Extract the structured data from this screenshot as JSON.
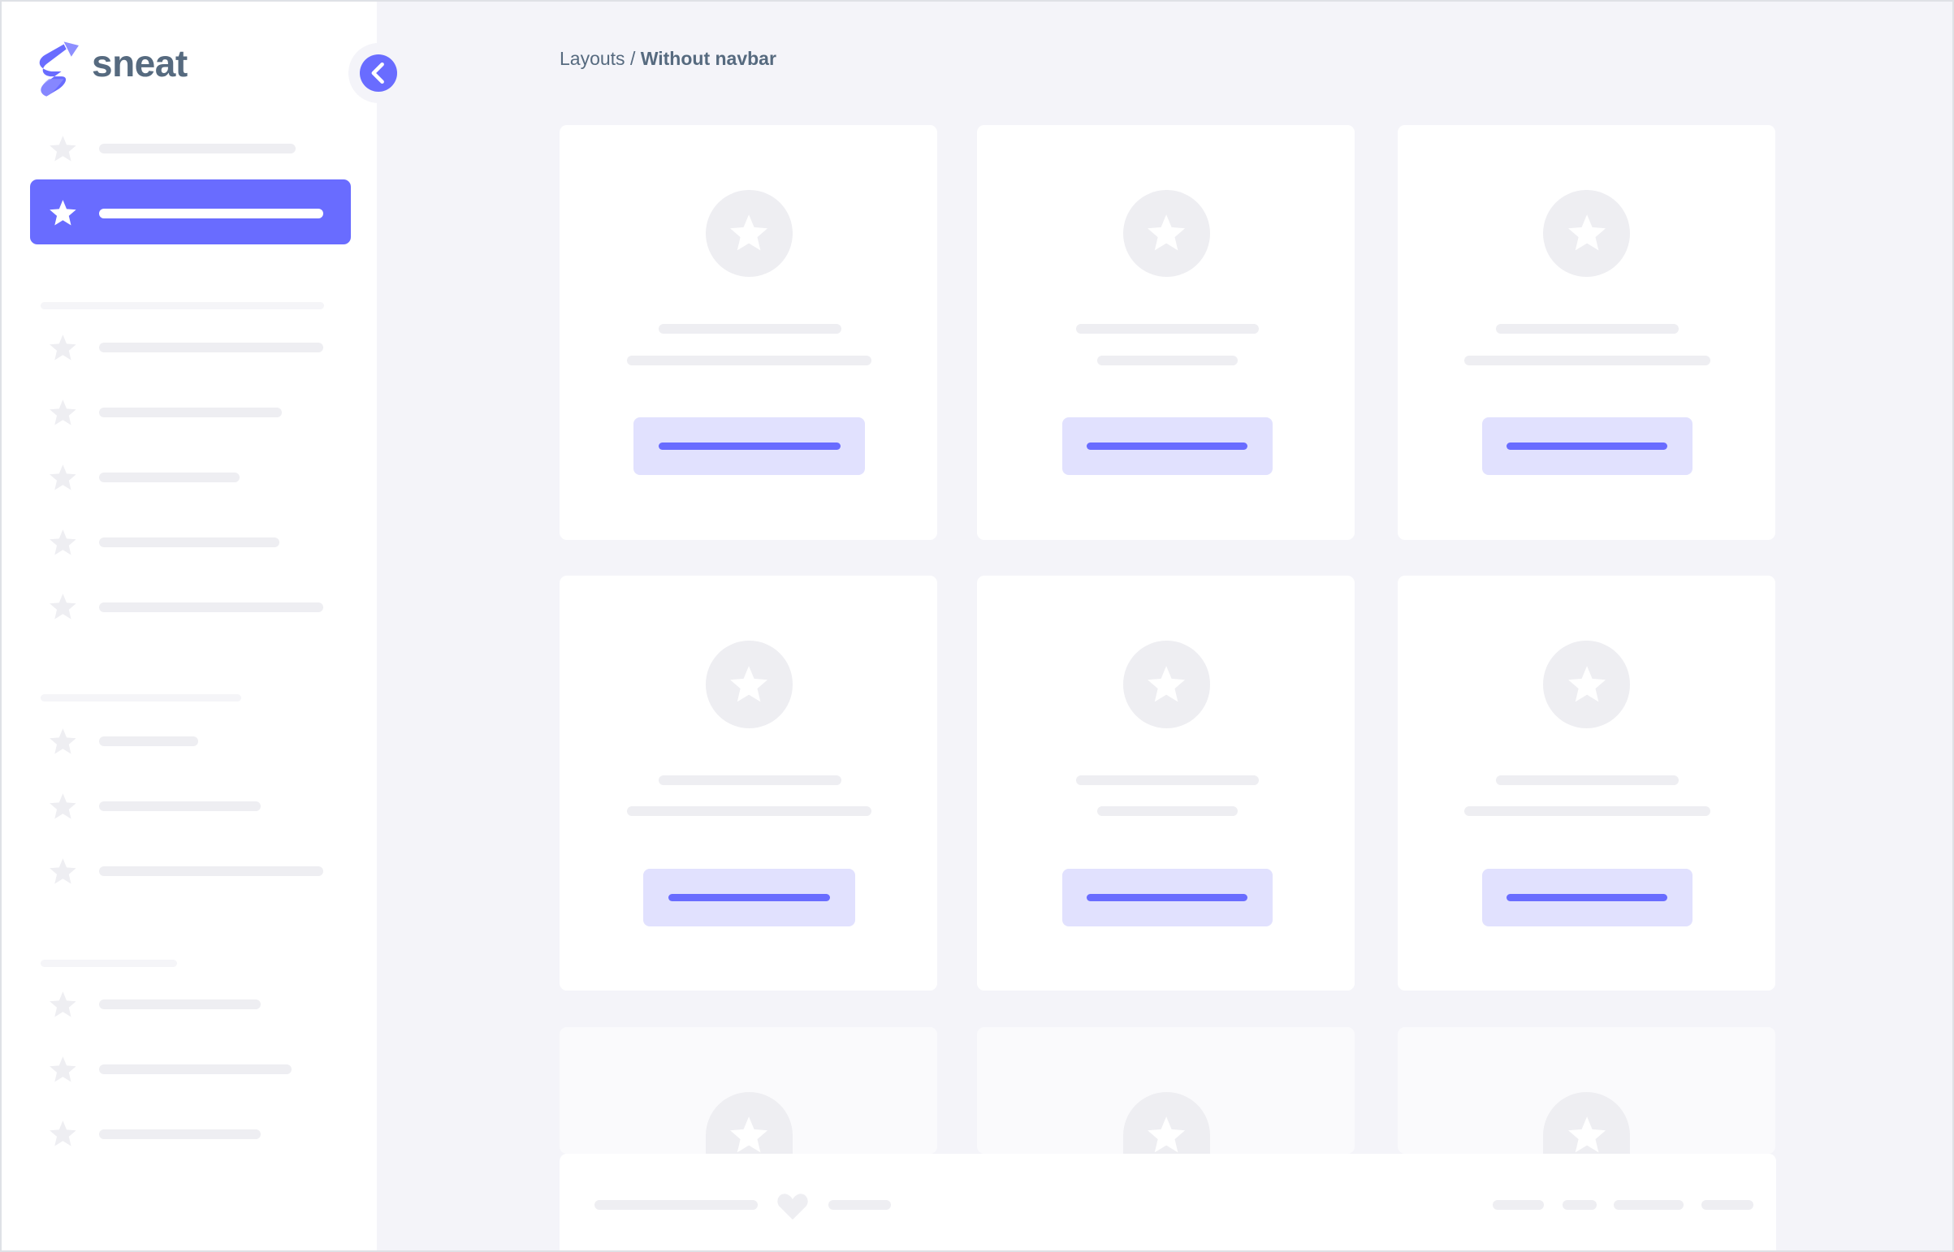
{
  "app": {
    "logo_text": "sneat",
    "brand_color": "#696cff"
  },
  "breadcrumb": {
    "parent": "Layouts",
    "separator": "/",
    "current": "Without navbar"
  },
  "sidebar": {
    "toggle_icon": "chevron-left-icon",
    "item_icon": "star-icon",
    "active_index": 1
  },
  "footer": {
    "icon": "heart-icon"
  },
  "colors": {
    "background": "#f4f4f9",
    "card": "#ffffff",
    "skeleton": "#eeeef2",
    "button_bg": "#e1e1fe",
    "accent": "#696cff",
    "text": "#566a7f"
  }
}
